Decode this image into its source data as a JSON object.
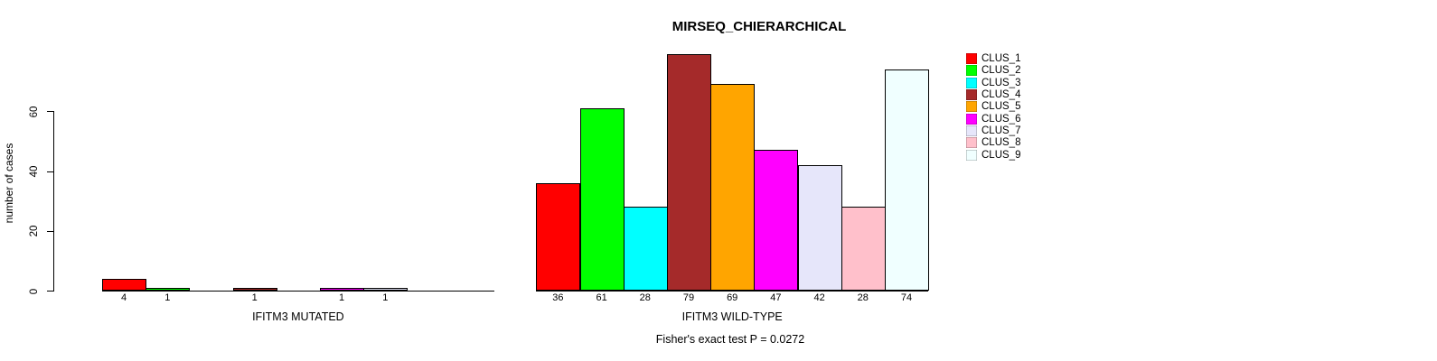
{
  "chart_data": {
    "type": "bar",
    "title": "MIRSEQ_CHIERARCHICAL",
    "ylabel": "number of cases",
    "annotation": "Fisher's exact test P = 0.0272",
    "yticks": [
      0,
      20,
      40,
      60
    ],
    "ylim": [
      0,
      80
    ],
    "grid": false,
    "legend_position": "top-right-outside",
    "legend": [
      {
        "label": "CLUS_1",
        "color": "#FF0000"
      },
      {
        "label": "CLUS_2",
        "color": "#00FF00"
      },
      {
        "label": "CLUS_3",
        "color": "#00FFFF"
      },
      {
        "label": "CLUS_4",
        "color": "#A52A2A"
      },
      {
        "label": "CLUS_5",
        "color": "#FFA500"
      },
      {
        "label": "CLUS_6",
        "color": "#FF00FF"
      },
      {
        "label": "CLUS_7",
        "color": "#E6E6FA"
      },
      {
        "label": "CLUS_8",
        "color": "#FFC0CB"
      },
      {
        "label": "CLUS_9",
        "color": "#F0FFFF"
      }
    ],
    "groups": [
      {
        "xlabel": "IFITM3 MUTATED",
        "values": [
          4,
          1,
          0,
          1,
          0,
          1,
          1,
          0,
          0
        ]
      },
      {
        "xlabel": "IFITM3 WILD-TYPE",
        "values": [
          36,
          61,
          28,
          79,
          69,
          47,
          42,
          28,
          74
        ]
      }
    ]
  }
}
